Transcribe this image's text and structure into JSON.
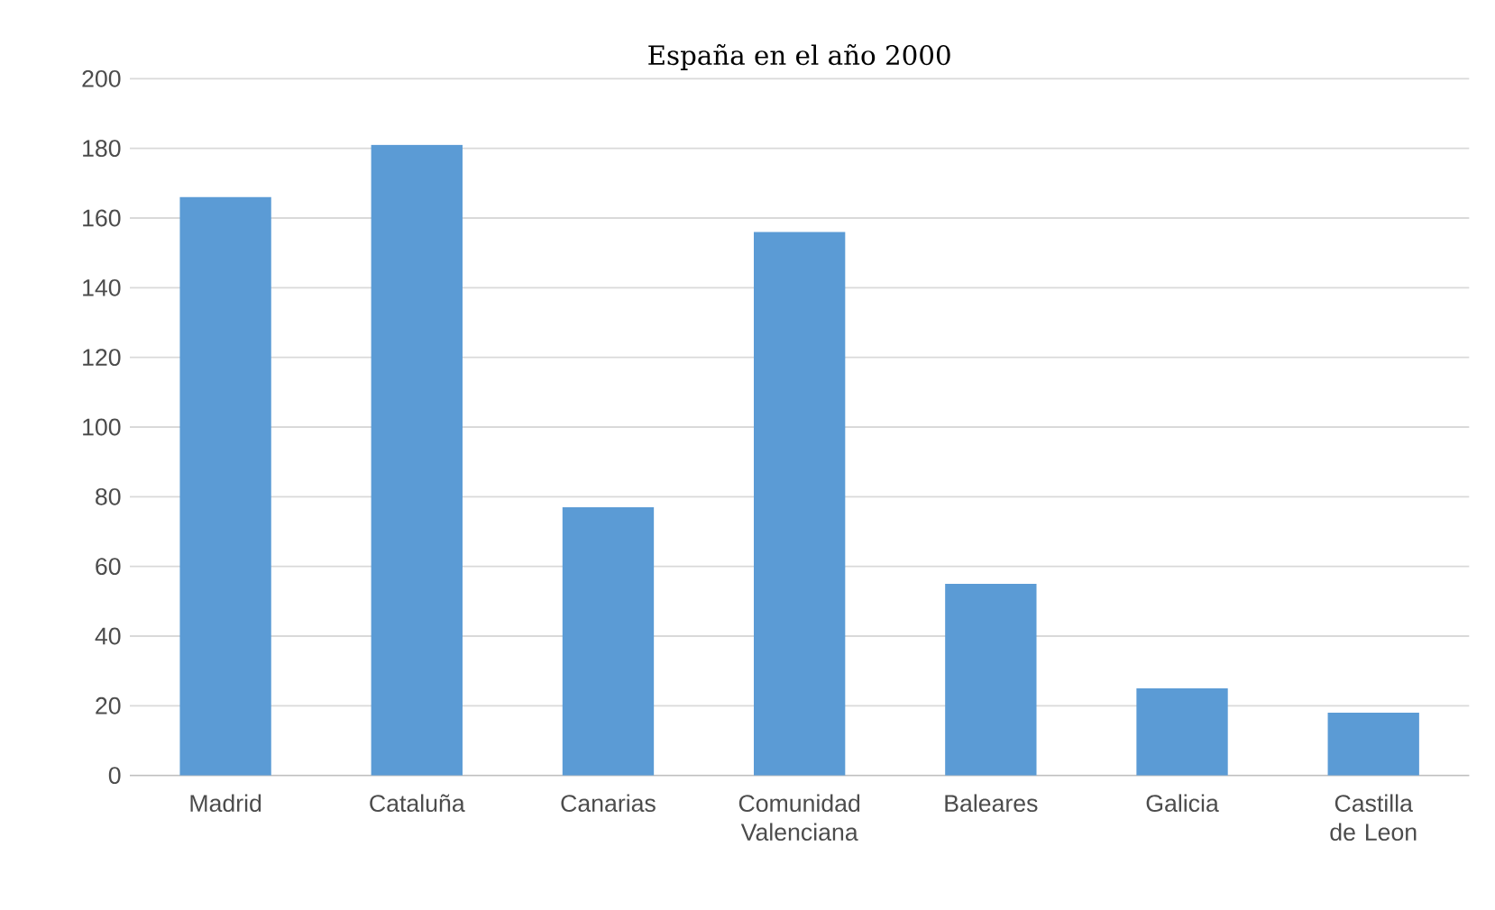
{
  "chart_data": {
    "type": "bar",
    "title": "España en el año 2000",
    "categories": [
      "Madrid",
      "Cataluña",
      "Canarias",
      "Comunidad Valenciana",
      "Baleares",
      "Galicia",
      "Castilla de Leon"
    ],
    "values": [
      166,
      181,
      77,
      156,
      55,
      25,
      18
    ],
    "color": "#5b9bd5",
    "ylim": [
      0,
      200
    ],
    "yticks": [
      0,
      20,
      40,
      60,
      80,
      100,
      120,
      140,
      160,
      180,
      200
    ],
    "grid": "y"
  }
}
